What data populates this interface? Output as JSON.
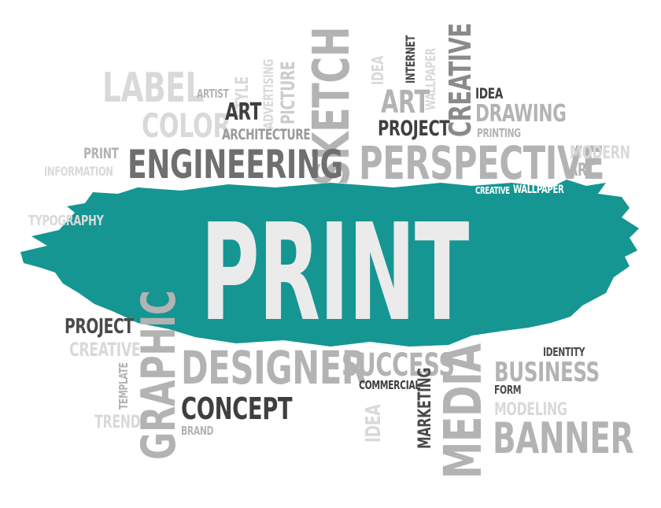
{
  "colors": {
    "teal": "#159692",
    "light_gray": "#d9d9d9",
    "mid_gray": "#b3b3b3",
    "dark_gray": "#8a8a8a",
    "charcoal": "#4a4a4a",
    "print_text": "#ebebeb"
  },
  "center_word": "PRINT",
  "words": {
    "label": "LABEL",
    "artist": "ARTIST",
    "style": "STYLE",
    "advertising": "ADVERTISING",
    "picture": "PICTURE",
    "sketch": "SKETCH",
    "idea_top": "IDEA",
    "internet": "INTERNET",
    "wallpaper_v": "WALLPAPER",
    "creative_v": "CREATIVE",
    "idea_right": "IDEA",
    "drawing": "DRAWING",
    "printing": "PRINTING",
    "art_small": "ART",
    "color": "COLOR",
    "architecture": "ARCHITECTURE",
    "art_top": "ART",
    "project_top": "PROJECT",
    "print_small": "PRINT",
    "information": "INFORMATION",
    "engineering": "ENGINEERING",
    "perspective": "PERSPECTIVE",
    "modern": "MODERN",
    "art_right": "ART",
    "creative_small": "CREATIVE",
    "wallpaper_small": "WALLPAPER",
    "typography": "TYPOGRAPHY",
    "project_bottom": "PROJECT",
    "creative_bottom": "CREATIVE",
    "template": "TEMPLATE",
    "trend": "TREND",
    "graphic": "GRAPHIC",
    "designer": "DESIGNER",
    "success": "SUCCESS",
    "commercial": "COMMERCIAL",
    "concept": "CONCEPT",
    "brand": "BRAND",
    "idea_bottom": "IDEA",
    "marketing": "MARKETING",
    "media": "MEDIA",
    "identity": "IDENTITY",
    "business": "BUSINESS",
    "form": "FORM",
    "modeling": "MODELING",
    "banner": "BANNER"
  }
}
